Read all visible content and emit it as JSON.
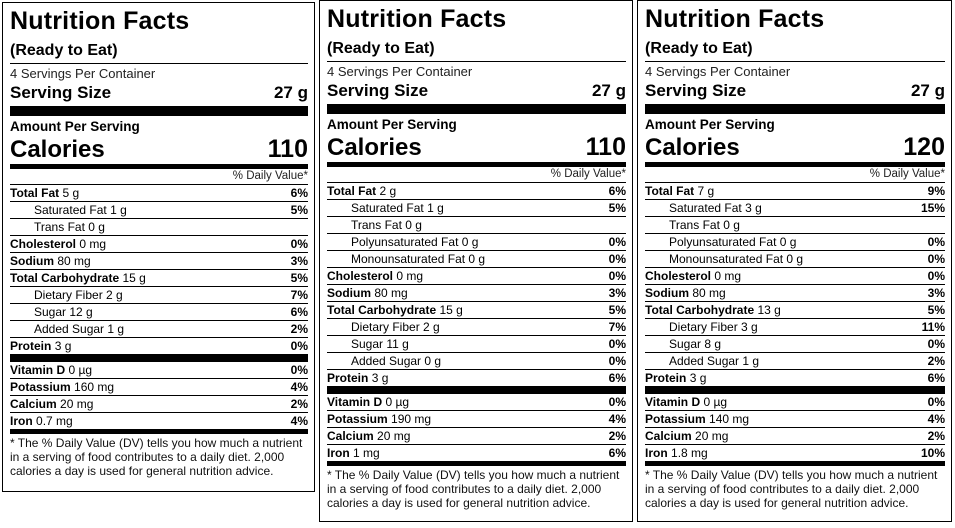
{
  "labels": [
    {
      "title": "Nutrition Facts",
      "subtitle": "(Ready to Eat)",
      "servings": "4 Servings Per Container",
      "serving_size_label": "Serving Size",
      "serving_size_value": "27 g",
      "amount_per_serving": "Amount Per Serving",
      "calories_label": "Calories",
      "calories_value": "110",
      "dv_header": "% Daily Value*",
      "nutrients": [
        {
          "name": "Total Fat",
          "amount": "5 g",
          "pct": "6%"
        },
        {
          "name": "Saturated Fat",
          "amount": "1 g",
          "pct": "5%"
        },
        {
          "name": "Trans Fat",
          "amount": "0 g",
          "pct": ""
        },
        {
          "name": "Cholesterol",
          "amount": "0 mg",
          "pct": "0%"
        },
        {
          "name": "Sodium",
          "amount": "80 mg",
          "pct": "3%"
        },
        {
          "name": "Total Carbohydrate",
          "amount": "15 g",
          "pct": "5%"
        },
        {
          "name": "Dietary Fiber",
          "amount": "2 g",
          "pct": "7%"
        },
        {
          "name": "Sugar",
          "amount": "12 g",
          "pct": "6%"
        },
        {
          "name": "Added Sugar",
          "amount": "1 g",
          "pct": "2%"
        },
        {
          "name": "Protein",
          "amount": "3 g",
          "pct": "0%"
        }
      ],
      "vitamins": [
        {
          "name": "Vitamin D",
          "amount": "0 µg",
          "pct": "0%"
        },
        {
          "name": "Potassium",
          "amount": "160 mg",
          "pct": "4%"
        },
        {
          "name": "Calcium",
          "amount": "20 mg",
          "pct": "2%"
        },
        {
          "name": "Iron",
          "amount": "0.7 mg",
          "pct": "4%"
        }
      ],
      "footnote": "* The % Daily Value (DV) tells you how much a nutrient in a serving of food contributes to a daily diet. 2,000 calories a day is used for general nutrition advice."
    },
    {
      "title": "Nutrition Facts",
      "subtitle": "(Ready to Eat)",
      "servings": "4 Servings Per Container",
      "serving_size_label": "Serving Size",
      "serving_size_value": "27 g",
      "amount_per_serving": "Amount Per Serving",
      "calories_label": "Calories",
      "calories_value": "110",
      "dv_header": "% Daily Value*",
      "nutrients": [
        {
          "name": "Total Fat",
          "amount": "2 g",
          "pct": "6%"
        },
        {
          "name": "Saturated Fat",
          "amount": "1 g",
          "pct": "5%"
        },
        {
          "name": "Trans Fat",
          "amount": "0 g",
          "pct": ""
        },
        {
          "name": "Polyunsaturated Fat",
          "amount": "0 g",
          "pct": "0%"
        },
        {
          "name": "Monounsaturated Fat",
          "amount": "0 g",
          "pct": "0%"
        },
        {
          "name": "Cholesterol",
          "amount": "0 mg",
          "pct": "0%"
        },
        {
          "name": "Sodium",
          "amount": "80 mg",
          "pct": "3%"
        },
        {
          "name": "Total Carbohydrate",
          "amount": "15 g",
          "pct": "5%"
        },
        {
          "name": "Dietary Fiber",
          "amount": "2 g",
          "pct": "7%"
        },
        {
          "name": "Sugar",
          "amount": "11 g",
          "pct": "0%"
        },
        {
          "name": "Added Sugar",
          "amount": "0 g",
          "pct": "0%"
        },
        {
          "name": "Protein",
          "amount": "3 g",
          "pct": "6%"
        }
      ],
      "vitamins": [
        {
          "name": "Vitamin D",
          "amount": "0 µg",
          "pct": "0%"
        },
        {
          "name": "Potassium",
          "amount": "190 mg",
          "pct": "4%"
        },
        {
          "name": "Calcium",
          "amount": "20 mg",
          "pct": "2%"
        },
        {
          "name": "Iron",
          "amount": "1 mg",
          "pct": "6%"
        }
      ],
      "footnote": "* The % Daily Value (DV) tells you how much a nutrient in a serving of food contributes to a daily diet. 2,000 calories a day is used for general nutrition advice."
    },
    {
      "title": "Nutrition Facts",
      "subtitle": "(Ready to Eat)",
      "servings": "4 Servings Per Container",
      "serving_size_label": "Serving Size",
      "serving_size_value": "27 g",
      "amount_per_serving": "Amount Per Serving",
      "calories_label": "Calories",
      "calories_value": "120",
      "dv_header": "% Daily Value*",
      "nutrients": [
        {
          "name": "Total Fat",
          "amount": "7 g",
          "pct": "9%"
        },
        {
          "name": "Saturated Fat",
          "amount": "3 g",
          "pct": "15%"
        },
        {
          "name": "Trans Fat",
          "amount": "0 g",
          "pct": ""
        },
        {
          "name": "Polyunsaturated Fat",
          "amount": "0 g",
          "pct": "0%"
        },
        {
          "name": "Monounsaturated Fat",
          "amount": "0 g",
          "pct": "0%"
        },
        {
          "name": "Cholesterol",
          "amount": "0 mg",
          "pct": "0%"
        },
        {
          "name": "Sodium",
          "amount": "80 mg",
          "pct": "3%"
        },
        {
          "name": "Total Carbohydrate",
          "amount": "13 g",
          "pct": "5%"
        },
        {
          "name": "Dietary Fiber",
          "amount": "3 g",
          "pct": "11%"
        },
        {
          "name": "Sugar",
          "amount": "8 g",
          "pct": "0%"
        },
        {
          "name": "Added Sugar",
          "amount": "1 g",
          "pct": "2%"
        },
        {
          "name": "Protein",
          "amount": "3 g",
          "pct": "6%"
        }
      ],
      "vitamins": [
        {
          "name": "Vitamin D",
          "amount": "0 µg",
          "pct": "0%"
        },
        {
          "name": "Potassium",
          "amount": "140 mg",
          "pct": "4%"
        },
        {
          "name": "Calcium",
          "amount": "20 mg",
          "pct": "2%"
        },
        {
          "name": "Iron",
          "amount": "1.8 mg",
          "pct": "10%"
        }
      ],
      "footnote": "* The % Daily Value (DV) tells you how much a nutrient in a serving of food contributes to a daily diet. 2,000 calories a day is used for general nutrition advice."
    }
  ]
}
